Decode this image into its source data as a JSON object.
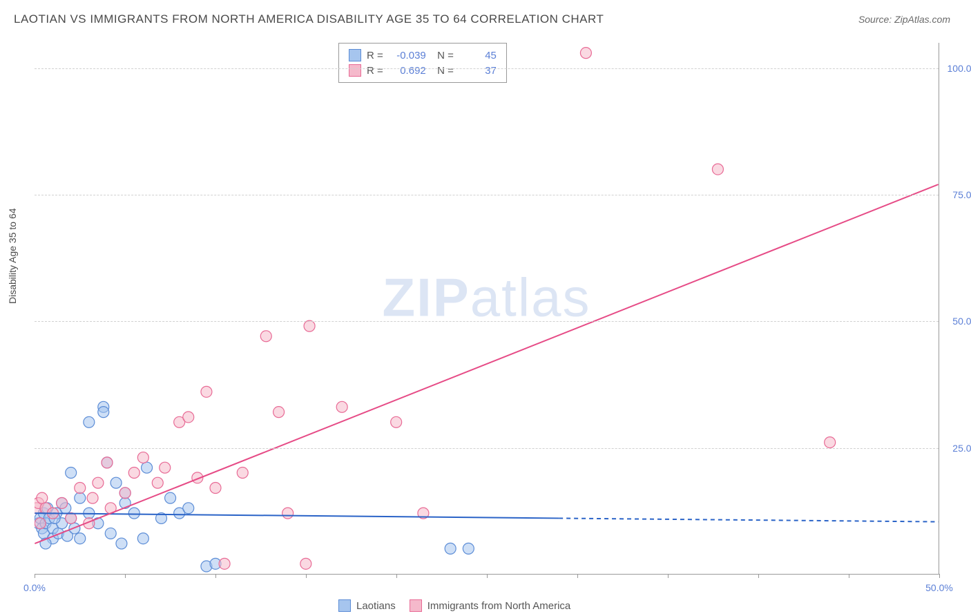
{
  "title": "LAOTIAN VS IMMIGRANTS FROM NORTH AMERICA DISABILITY AGE 35 TO 64 CORRELATION CHART",
  "source": "Source: ZipAtlas.com",
  "y_label": "Disability Age 35 to 64",
  "watermark_bold": "ZIP",
  "watermark_rest": "atlas",
  "chart": {
    "type": "scatter",
    "xlim": [
      0,
      50
    ],
    "ylim": [
      0,
      105
    ],
    "x_ticks": [
      0,
      5,
      10,
      15,
      20,
      25,
      30,
      35,
      40,
      45,
      50
    ],
    "x_tick_labels": {
      "0": "0.0%",
      "50": "50.0%"
    },
    "y_gridlines": [
      25,
      50,
      75,
      100
    ],
    "y_tick_labels": {
      "25": "25.0%",
      "50": "50.0%",
      "75": "75.0%",
      "100": "100.0%"
    },
    "background_color": "#ffffff",
    "grid_color": "#d0d0d0",
    "series": [
      {
        "name": "Laotians",
        "fill": "#a6c5ee",
        "stroke": "#5b8cd6",
        "opacity": 0.55,
        "marker_radius": 8,
        "R": "-0.039",
        "N": "45",
        "points": [
          [
            0.2,
            10
          ],
          [
            0.3,
            11
          ],
          [
            0.4,
            9
          ],
          [
            0.5,
            12
          ],
          [
            0.5,
            8
          ],
          [
            0.6,
            10
          ],
          [
            0.7,
            13
          ],
          [
            0.8,
            11
          ],
          [
            1.0,
            9
          ],
          [
            1.0,
            7
          ],
          [
            1.2,
            12
          ],
          [
            1.3,
            8
          ],
          [
            1.5,
            14
          ],
          [
            1.5,
            10
          ],
          [
            1.8,
            7.5
          ],
          [
            2.0,
            11
          ],
          [
            2.0,
            20
          ],
          [
            2.2,
            9
          ],
          [
            2.5,
            15
          ],
          [
            2.5,
            7
          ],
          [
            3.0,
            12
          ],
          [
            3.0,
            30
          ],
          [
            3.5,
            10
          ],
          [
            3.8,
            33
          ],
          [
            3.8,
            32
          ],
          [
            4.0,
            22
          ],
          [
            4.2,
            8
          ],
          [
            4.5,
            18
          ],
          [
            4.8,
            6
          ],
          [
            5.0,
            14
          ],
          [
            5.0,
            16
          ],
          [
            5.5,
            12
          ],
          [
            6.0,
            7
          ],
          [
            6.2,
            21
          ],
          [
            7.0,
            11
          ],
          [
            7.5,
            15
          ],
          [
            8.0,
            12
          ],
          [
            8.5,
            13
          ],
          [
            9.5,
            1.5
          ],
          [
            10.0,
            2
          ],
          [
            23.0,
            5
          ],
          [
            24.0,
            5
          ],
          [
            0.6,
            6
          ],
          [
            1.1,
            11
          ],
          [
            1.7,
            13
          ]
        ],
        "trend": {
          "x1": 0,
          "y1": 12,
          "x2": 29,
          "y2": 11,
          "dash_x2": 50,
          "dash_y2": 10.3,
          "color": "#2a63c7",
          "width": 2
        }
      },
      {
        "name": "Immigrants from North America",
        "fill": "#f5b9cb",
        "stroke": "#e86a95",
        "opacity": 0.55,
        "marker_radius": 8,
        "R": "0.692",
        "N": "37",
        "points": [
          [
            0.1,
            13
          ],
          [
            0.2,
            14
          ],
          [
            0.3,
            10
          ],
          [
            0.4,
            15
          ],
          [
            0.6,
            13
          ],
          [
            1.0,
            12
          ],
          [
            1.5,
            14
          ],
          [
            2.0,
            11
          ],
          [
            2.5,
            17
          ],
          [
            3.0,
            10
          ],
          [
            3.5,
            18
          ],
          [
            4.0,
            22
          ],
          [
            4.2,
            13
          ],
          [
            5.0,
            16
          ],
          [
            5.5,
            20
          ],
          [
            6.0,
            23
          ],
          [
            6.8,
            18
          ],
          [
            7.2,
            21
          ],
          [
            8.0,
            30
          ],
          [
            8.5,
            31
          ],
          [
            9.0,
            19
          ],
          [
            9.5,
            36
          ],
          [
            10.0,
            17
          ],
          [
            10.5,
            2
          ],
          [
            11.5,
            20
          ],
          [
            12.8,
            47
          ],
          [
            13.5,
            32
          ],
          [
            14.0,
            12
          ],
          [
            15.0,
            2
          ],
          [
            15.2,
            49
          ],
          [
            17.0,
            33
          ],
          [
            20.0,
            30
          ],
          [
            21.5,
            12
          ],
          [
            30.5,
            103
          ],
          [
            37.8,
            80
          ],
          [
            44.0,
            26
          ],
          [
            3.2,
            15
          ]
        ],
        "trend": {
          "x1": 0,
          "y1": 6,
          "x2": 50,
          "y2": 77,
          "color": "#e64b86",
          "width": 2
        }
      }
    ]
  },
  "legend": {
    "series1_label": "Laotians",
    "series2_label": "Immigrants from North America"
  }
}
